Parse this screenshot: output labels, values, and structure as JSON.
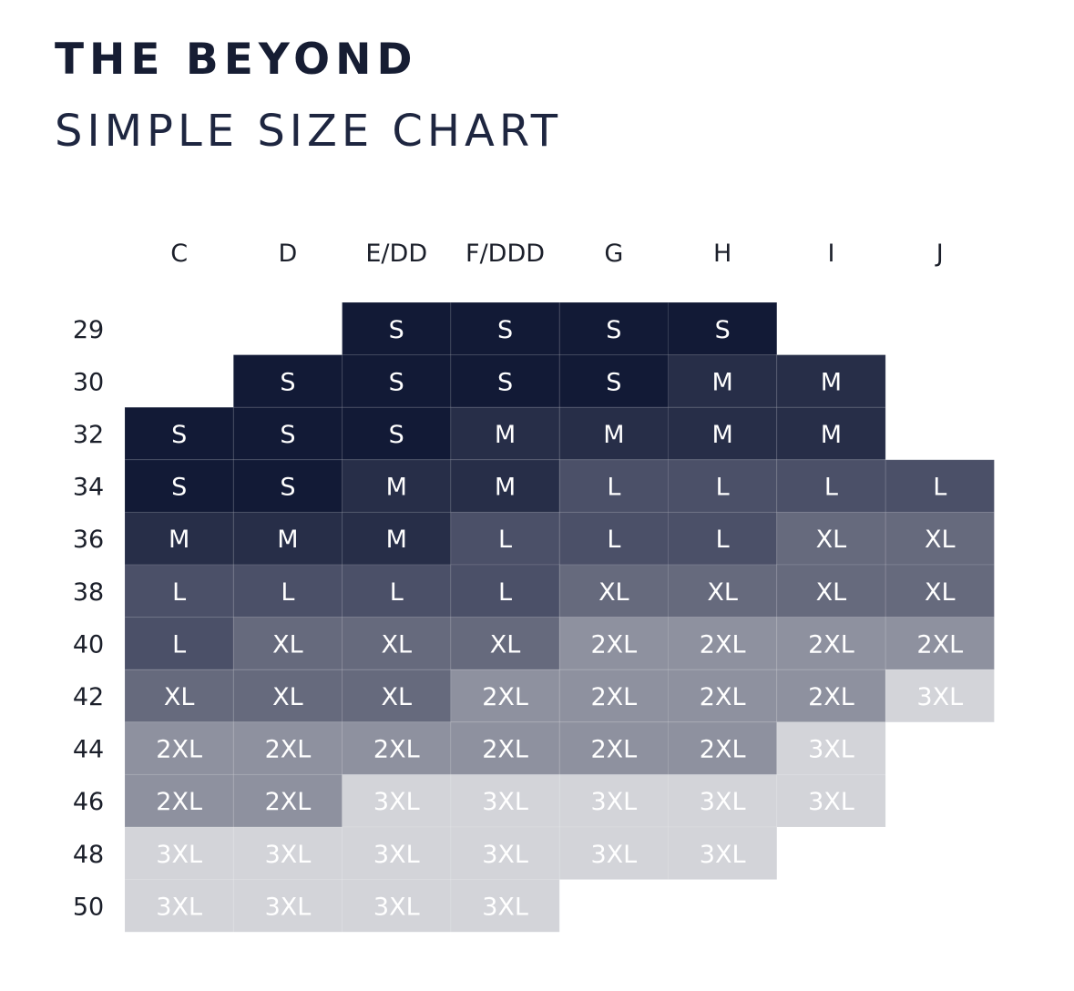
{
  "header": {
    "brand": "THE BEYOND",
    "subtitle": "SIMPLE SIZE CHART"
  },
  "chart_data": {
    "type": "table",
    "columns": [
      "C",
      "D",
      "E/DD",
      "F/DDD",
      "G",
      "H",
      "I",
      "J"
    ],
    "rows": [
      "29",
      "30",
      "32",
      "34",
      "36",
      "38",
      "40",
      "42",
      "44",
      "46",
      "48",
      "50"
    ],
    "cells": [
      [
        "",
        "",
        "S",
        "S",
        "S",
        "S",
        "",
        ""
      ],
      [
        "",
        "S",
        "S",
        "S",
        "S",
        "M",
        "M",
        ""
      ],
      [
        "S",
        "S",
        "S",
        "M",
        "M",
        "M",
        "M",
        ""
      ],
      [
        "S",
        "S",
        "M",
        "M",
        "L",
        "L",
        "L",
        "L"
      ],
      [
        "M",
        "M",
        "M",
        "L",
        "L",
        "L",
        "XL",
        "XL"
      ],
      [
        "L",
        "L",
        "L",
        "L",
        "XL",
        "XL",
        "XL",
        "XL"
      ],
      [
        "L",
        "XL",
        "XL",
        "XL",
        "2XL",
        "2XL",
        "2XL",
        "2XL"
      ],
      [
        "XL",
        "XL",
        "XL",
        "2XL",
        "2XL",
        "2XL",
        "2XL",
        "3XL"
      ],
      [
        "2XL",
        "2XL",
        "2XL",
        "2XL",
        "2XL",
        "2XL",
        "3XL",
        ""
      ],
      [
        "2XL",
        "2XL",
        "3XL",
        "3XL",
        "3XL",
        "3XL",
        "3XL",
        ""
      ],
      [
        "3XL",
        "3XL",
        "3XL",
        "3XL",
        "3XL",
        "3XL",
        "",
        ""
      ],
      [
        "3XL",
        "3XL",
        "3XL",
        "3XL",
        "",
        "",
        "",
        ""
      ]
    ],
    "size_colors": {
      "S": "#121a36",
      "M": "#272e48",
      "L": "#4b5068",
      "XL": "#666a7d",
      "2XL": "#8e919f",
      "3XL": "#d3d4d9"
    },
    "text_color": "#ffffff",
    "grid_line_color": "#3a4158"
  }
}
